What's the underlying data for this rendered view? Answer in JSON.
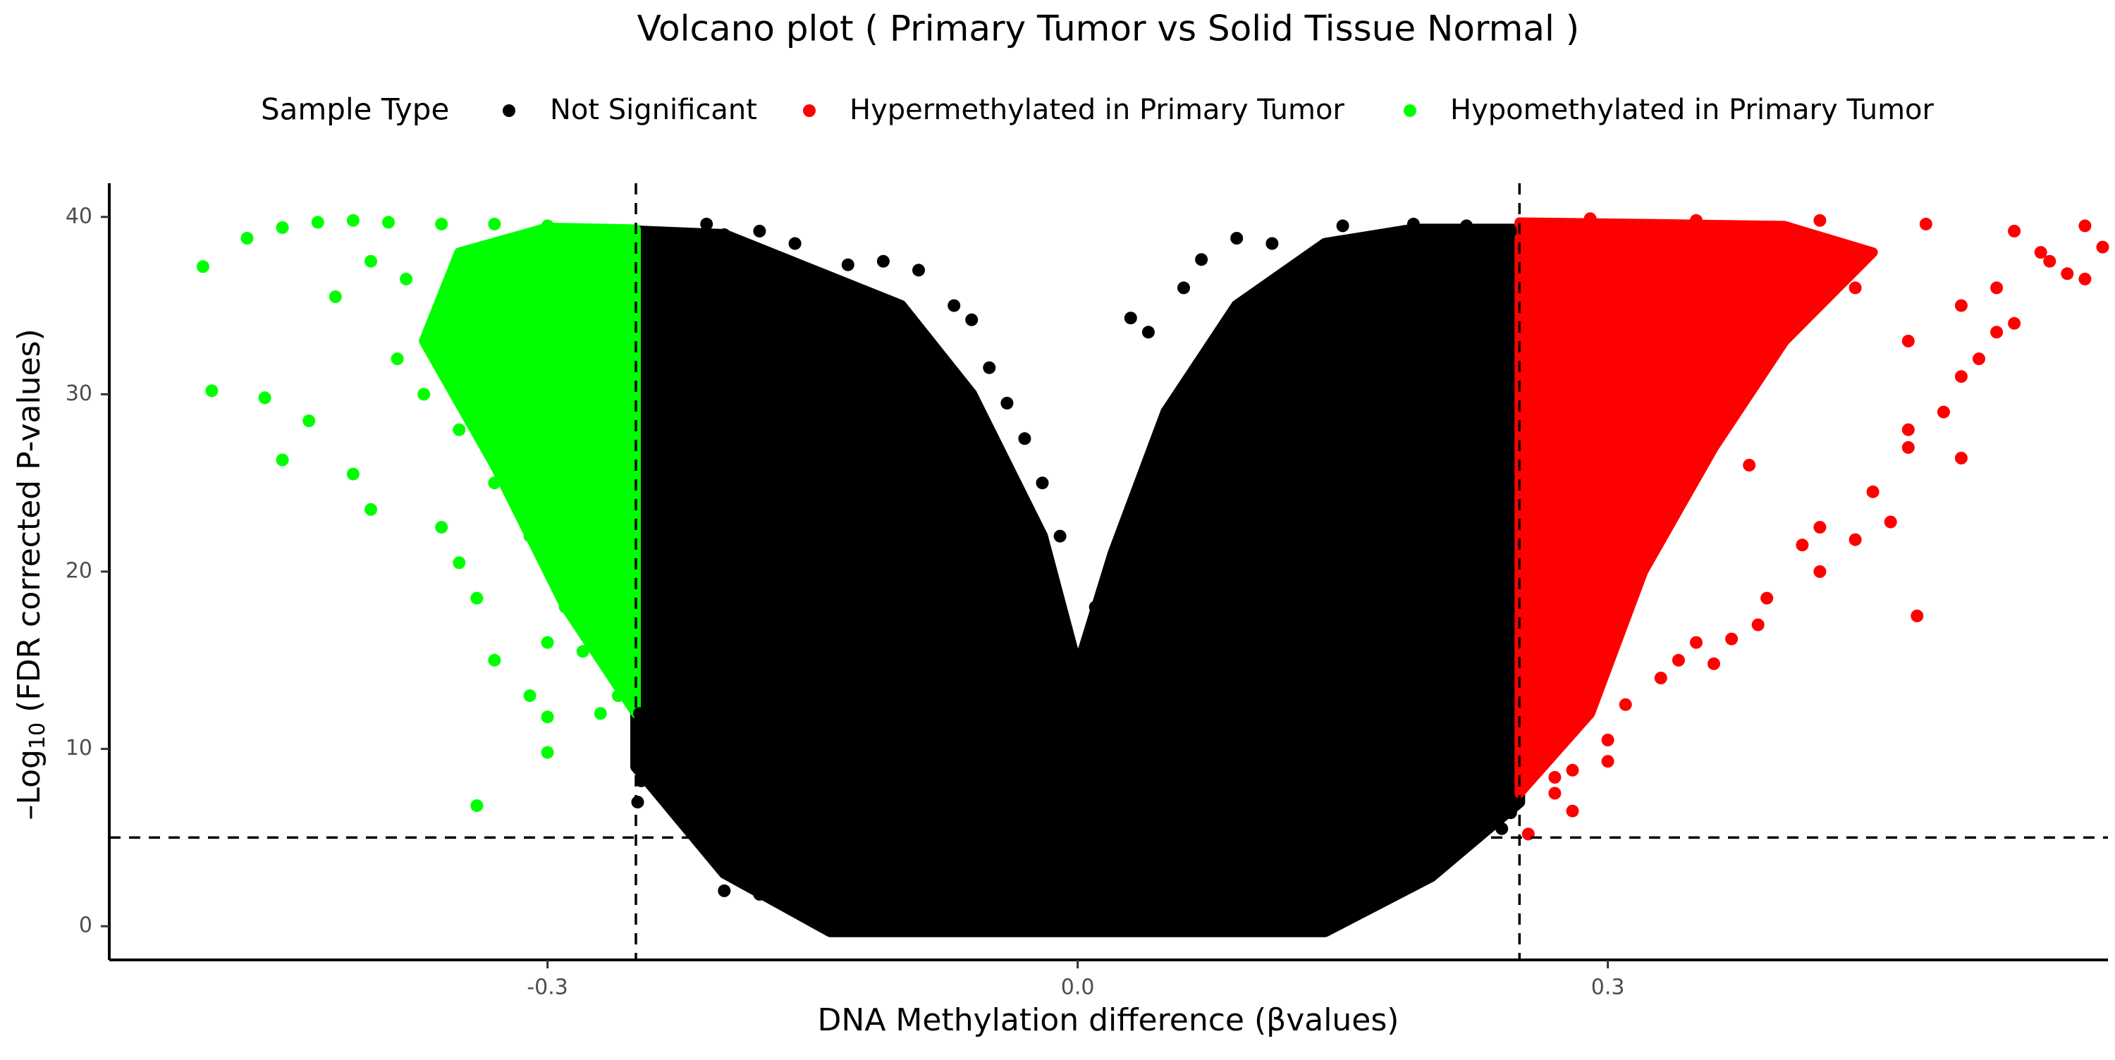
{
  "chart_data": {
    "type": "scatter",
    "title": "Volcano plot ( Primary Tumor vs Solid Tissue Normal )",
    "xlabel": "DNA Methylation difference (βvalues)",
    "ylabel_prefix": "–Log",
    "ylabel_subscript": "10",
    "ylabel_suffix": " (FDR corrected P-values)",
    "xlim": [
      -0.548,
      0.583
    ],
    "ylim": [
      -1.9,
      41.9
    ],
    "x_ticks": [
      -0.3,
      0.0,
      0.3
    ],
    "x_tick_labels": [
      "-0.3",
      "0.0",
      "0.3"
    ],
    "y_ticks": [
      0,
      10,
      20,
      30,
      40
    ],
    "y_tick_labels": [
      "0",
      "10",
      "20",
      "30",
      "40"
    ],
    "thresholds": {
      "x": [
        -0.25,
        0.25
      ],
      "y": 5
    },
    "grid": false,
    "legend": {
      "title": "Sample Type",
      "position": "top",
      "entries": [
        {
          "label": "Not Significant",
          "color": "#000000"
        },
        {
          "label": "Hypermethylated in Primary Tumor",
          "color": "#ff0000"
        },
        {
          "label": "Hypomethylated in Primary Tumor",
          "color": "#00ff00"
        }
      ]
    },
    "series": [
      {
        "name": "Not Significant",
        "color": "#000000",
        "points": [
          [
            -0.249,
            7.0
          ],
          [
            -0.247,
            8.2
          ],
          [
            -0.24,
            10.2
          ],
          [
            -0.235,
            12.5
          ],
          [
            -0.23,
            14.5
          ],
          [
            -0.225,
            39.0
          ],
          [
            -0.21,
            39.6
          ],
          [
            -0.2,
            39.0
          ],
          [
            -0.19,
            38.5
          ],
          [
            -0.18,
            39.2
          ],
          [
            -0.16,
            38.5
          ],
          [
            -0.13,
            37.3
          ],
          [
            -0.11,
            37.5
          ],
          [
            -0.09,
            37.0
          ],
          [
            -0.07,
            35.0
          ],
          [
            -0.06,
            34.2
          ],
          [
            -0.05,
            31.5
          ],
          [
            -0.04,
            29.5
          ],
          [
            -0.03,
            27.5
          ],
          [
            -0.02,
            25.0
          ],
          [
            -0.01,
            22.0
          ],
          [
            0.0,
            13.0
          ],
          [
            0.01,
            18.0
          ],
          [
            0.03,
            34.3
          ],
          [
            0.04,
            33.5
          ],
          [
            0.06,
            36.0
          ],
          [
            0.07,
            37.6
          ],
          [
            0.09,
            38.8
          ],
          [
            0.11,
            38.5
          ],
          [
            0.15,
            39.5
          ],
          [
            0.19,
            39.6
          ],
          [
            0.22,
            39.5
          ],
          [
            0.245,
            39.2
          ],
          [
            -0.2,
            2.0
          ],
          [
            -0.2,
            4.0
          ],
          [
            -0.21,
            5.5
          ],
          [
            -0.2,
            6.8
          ],
          [
            -0.18,
            1.8
          ],
          [
            -0.17,
            2.5
          ],
          [
            -0.15,
            3.0
          ],
          [
            0.15,
            0.5
          ],
          [
            0.16,
            1.8
          ],
          [
            0.17,
            2.0
          ],
          [
            0.18,
            3.0
          ],
          [
            0.19,
            3.8
          ],
          [
            0.22,
            4.8
          ],
          [
            0.24,
            5.5
          ],
          [
            0.245,
            6.4
          ],
          [
            0.145,
            0.8
          ],
          [
            -0.248,
            12.0
          ],
          [
            -0.24,
            8.0
          ]
        ]
      },
      {
        "name": "Hypermethylated in Primary Tumor",
        "color": "#ff0000",
        "points": [
          [
            0.255,
            5.2
          ],
          [
            0.26,
            9.0
          ],
          [
            0.27,
            8.4
          ],
          [
            0.27,
            7.5
          ],
          [
            0.28,
            8.8
          ],
          [
            0.28,
            6.5
          ],
          [
            0.3,
            9.3
          ],
          [
            0.3,
            10.5
          ],
          [
            0.31,
            12.5
          ],
          [
            0.33,
            14.0
          ],
          [
            0.34,
            15.0
          ],
          [
            0.35,
            16.0
          ],
          [
            0.36,
            14.8
          ],
          [
            0.37,
            16.2
          ],
          [
            0.385,
            17.0
          ],
          [
            0.39,
            18.5
          ],
          [
            0.42,
            20.0
          ],
          [
            0.41,
            21.5
          ],
          [
            0.42,
            22.5
          ],
          [
            0.44,
            21.8
          ],
          [
            0.45,
            24.5
          ],
          [
            0.46,
            22.8
          ],
          [
            0.475,
            17.5
          ],
          [
            0.47,
            27.0
          ],
          [
            0.47,
            28.0
          ],
          [
            0.49,
            29.0
          ],
          [
            0.5,
            31.0
          ],
          [
            0.5,
            26.4
          ],
          [
            0.51,
            32.0
          ],
          [
            0.52,
            33.5
          ],
          [
            0.53,
            34.0
          ],
          [
            0.5,
            35.0
          ],
          [
            0.52,
            36.0
          ],
          [
            0.545,
            38.0
          ],
          [
            0.55,
            37.5
          ],
          [
            0.56,
            36.8
          ],
          [
            0.57,
            36.5
          ],
          [
            0.58,
            38.3
          ],
          [
            0.53,
            39.2
          ],
          [
            0.57,
            39.5
          ],
          [
            0.48,
            39.6
          ],
          [
            0.42,
            39.8
          ],
          [
            0.35,
            39.8
          ],
          [
            0.29,
            39.9
          ],
          [
            0.27,
            38.0
          ],
          [
            0.3,
            35.0
          ],
          [
            0.34,
            30.0
          ],
          [
            0.38,
            26.0
          ],
          [
            0.28,
            25.0
          ],
          [
            0.31,
            20.0
          ],
          [
            0.27,
            15.0
          ],
          [
            0.33,
            24.0
          ],
          [
            0.37,
            33.0
          ],
          [
            0.44,
            36.0
          ],
          [
            0.26,
            30.0
          ],
          [
            0.26,
            20.0
          ],
          [
            0.26,
            12.0
          ],
          [
            0.29,
            33.0
          ],
          [
            0.4,
            38.0
          ],
          [
            0.47,
            33.0
          ]
        ]
      },
      {
        "name": "Hypomethylated in Primary Tumor",
        "color": "#00ff00",
        "points": [
          [
            -0.495,
            37.2
          ],
          [
            -0.49,
            30.2
          ],
          [
            -0.46,
            29.8
          ],
          [
            -0.45,
            26.3
          ],
          [
            -0.435,
            28.5
          ],
          [
            -0.41,
            25.5
          ],
          [
            -0.4,
            23.5
          ],
          [
            -0.36,
            22.5
          ],
          [
            -0.35,
            20.5
          ],
          [
            -0.34,
            18.5
          ],
          [
            -0.33,
            15.0
          ],
          [
            -0.31,
            13.0
          ],
          [
            -0.3,
            11.8
          ],
          [
            -0.3,
            9.8
          ],
          [
            -0.34,
            6.8
          ],
          [
            -0.47,
            38.8
          ],
          [
            -0.45,
            39.4
          ],
          [
            -0.43,
            39.7
          ],
          [
            -0.41,
            39.8
          ],
          [
            -0.39,
            39.7
          ],
          [
            -0.36,
            39.6
          ],
          [
            -0.33,
            39.6
          ],
          [
            -0.3,
            39.5
          ],
          [
            -0.27,
            39.0
          ],
          [
            -0.26,
            36.0
          ],
          [
            -0.255,
            30.0
          ],
          [
            -0.255,
            24.0
          ],
          [
            -0.255,
            18.0
          ],
          [
            -0.26,
            13.0
          ],
          [
            -0.27,
            12.0
          ],
          [
            -0.28,
            15.5
          ],
          [
            -0.29,
            18.0
          ],
          [
            -0.3,
            22.0
          ],
          [
            -0.32,
            27.0
          ],
          [
            -0.34,
            31.0
          ],
          [
            -0.36,
            34.0
          ],
          [
            -0.38,
            36.5
          ],
          [
            -0.4,
            37.5
          ],
          [
            -0.42,
            35.5
          ],
          [
            -0.385,
            32.0
          ],
          [
            -0.37,
            30.0
          ],
          [
            -0.35,
            28.0
          ],
          [
            -0.33,
            25.0
          ],
          [
            -0.31,
            22.0
          ],
          [
            -0.29,
            27.0
          ],
          [
            -0.27,
            33.0
          ],
          [
            -0.29,
            36.0
          ],
          [
            -0.32,
            38.0
          ],
          [
            -0.28,
            20.0
          ],
          [
            -0.3,
            16.0
          ]
        ]
      }
    ]
  }
}
